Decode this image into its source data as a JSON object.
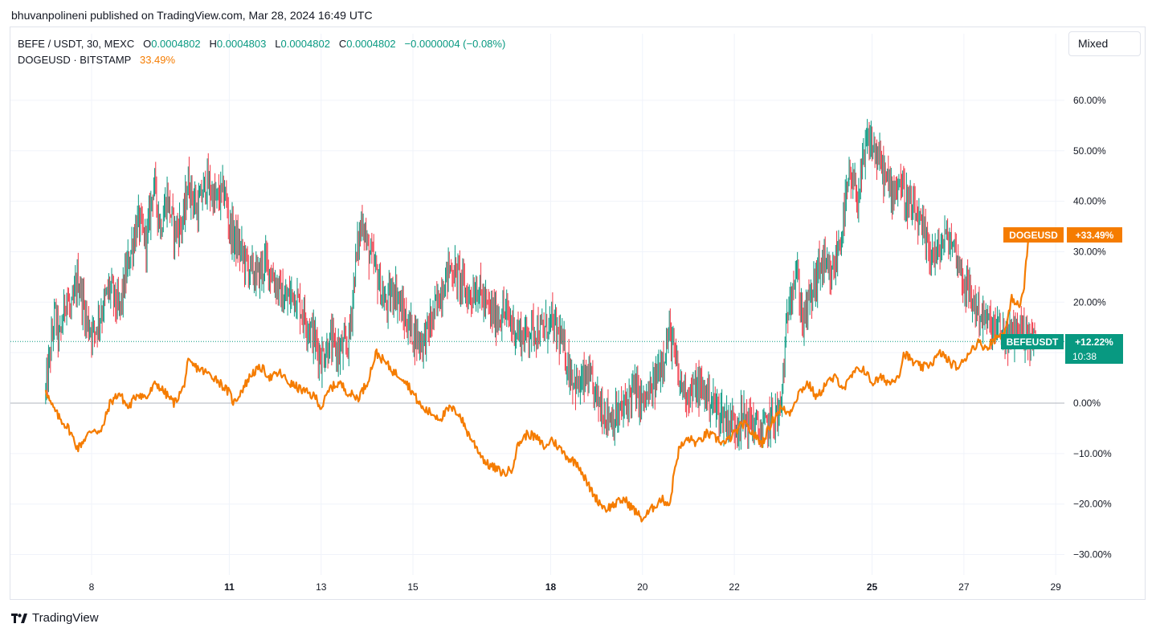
{
  "header": {
    "published": "bhuvanpolineni published on TradingView.com, Mar 28, 2024 16:49 UTC"
  },
  "legend": {
    "symbol_line": "BEFE / USDT, 30, MEXC",
    "o_label": "O",
    "o_value": "0.0004802",
    "h_label": "H",
    "h_value": "0.0004803",
    "l_label": "L",
    "l_value": "0.0004802",
    "c_label": "C",
    "c_value": "0.0004802",
    "change": "−0.0000004 (−0.08%)",
    "compare_symbol": "DOGEUSD · BITSTAMP",
    "compare_value": "33.49%"
  },
  "controls": {
    "scale_mode": "Mixed"
  },
  "badges": {
    "doge_label": "DOGEUSD",
    "doge_value": "+33.49%",
    "befe_label": "BEFEUSDT",
    "befe_value": "+12.22%",
    "befe_countdown": "10:38"
  },
  "footer": {
    "brand": "TradingView",
    "logo_icon": "tradingview-logo-icon"
  },
  "colors": {
    "up": "#089981",
    "down": "#f23645",
    "compare": "#f57c00",
    "grid": "#f0f3fa",
    "text": "#131722"
  },
  "chart_data": {
    "type": "line",
    "x_axis": {
      "ticks": [
        "8",
        "11",
        "13",
        "15",
        "18",
        "20",
        "22",
        "25",
        "27",
        "29"
      ],
      "bold_ticks": [
        "11",
        "18",
        "25"
      ],
      "range_days": [
        7.0,
        29.0
      ]
    },
    "y_axis": {
      "unit": "%",
      "ticks": [
        "60.00%",
        "50.00%",
        "40.00%",
        "30.00%",
        "20.00%",
        "10.00%",
        "0.00%",
        "−10.00%",
        "−20.00%",
        "−30.00%"
      ],
      "range": [
        -33,
        70
      ]
    },
    "grid": true,
    "baseline_value": 0,
    "last_price_line": 12.22,
    "series": [
      {
        "name": "BEFE / USDT, 30, MEXC",
        "style": "candles",
        "anchors": [
          [
            7.0,
            2
          ],
          [
            7.1,
            10
          ],
          [
            7.2,
            18
          ],
          [
            7.3,
            12
          ],
          [
            7.45,
            22
          ],
          [
            7.55,
            17
          ],
          [
            7.7,
            25
          ],
          [
            7.9,
            16
          ],
          [
            8.05,
            14
          ],
          [
            8.2,
            18
          ],
          [
            8.4,
            23
          ],
          [
            8.6,
            18
          ],
          [
            8.8,
            28
          ],
          [
            9.0,
            36
          ],
          [
            9.2,
            32
          ],
          [
            9.35,
            44
          ],
          [
            9.5,
            35
          ],
          [
            9.65,
            41
          ],
          [
            9.8,
            34
          ],
          [
            10.0,
            36
          ],
          [
            10.1,
            44
          ],
          [
            10.3,
            38
          ],
          [
            10.5,
            44
          ],
          [
            10.7,
            40
          ],
          [
            10.9,
            42
          ],
          [
            11.0,
            35
          ],
          [
            11.2,
            31
          ],
          [
            11.4,
            27
          ],
          [
            11.6,
            25
          ],
          [
            11.8,
            28
          ],
          [
            12.0,
            24
          ],
          [
            12.2,
            20
          ],
          [
            12.4,
            22
          ],
          [
            12.6,
            18
          ],
          [
            12.8,
            14
          ],
          [
            13.0,
            9
          ],
          [
            13.2,
            12
          ],
          [
            13.4,
            10
          ],
          [
            13.6,
            12
          ],
          [
            13.75,
            28
          ],
          [
            13.9,
            37
          ],
          [
            14.0,
            31
          ],
          [
            14.2,
            26
          ],
          [
            14.4,
            19
          ],
          [
            14.6,
            23
          ],
          [
            14.8,
            17
          ],
          [
            15.0,
            14
          ],
          [
            15.2,
            12
          ],
          [
            15.4,
            16
          ],
          [
            15.6,
            22
          ],
          [
            15.8,
            27
          ],
          [
            16.0,
            25
          ],
          [
            16.2,
            21
          ],
          [
            16.4,
            23
          ],
          [
            16.6,
            19
          ],
          [
            16.8,
            17
          ],
          [
            17.0,
            18
          ],
          [
            17.2,
            15
          ],
          [
            17.4,
            13
          ],
          [
            17.6,
            15
          ],
          [
            17.8,
            14
          ],
          [
            18.0,
            16
          ],
          [
            18.2,
            13
          ],
          [
            18.4,
            7
          ],
          [
            18.6,
            3
          ],
          [
            18.8,
            5
          ],
          [
            19.0,
            1
          ],
          [
            19.2,
            -2
          ],
          [
            19.4,
            -3
          ],
          [
            19.6,
            -1
          ],
          [
            19.8,
            3
          ],
          [
            20.0,
            0
          ],
          [
            20.2,
            2
          ],
          [
            20.4,
            8
          ],
          [
            20.6,
            14
          ],
          [
            20.7,
            9
          ],
          [
            20.8,
            4
          ],
          [
            21.0,
            2
          ],
          [
            21.2,
            3
          ],
          [
            21.4,
            2
          ],
          [
            21.6,
            -1
          ],
          [
            21.8,
            -3
          ],
          [
            22.0,
            -4
          ],
          [
            22.2,
            -3
          ],
          [
            22.4,
            -4
          ],
          [
            22.6,
            -6
          ],
          [
            22.8,
            -3
          ],
          [
            23.0,
            -2
          ],
          [
            23.1,
            10
          ],
          [
            23.2,
            22
          ],
          [
            23.35,
            26
          ],
          [
            23.5,
            16
          ],
          [
            23.7,
            22
          ],
          [
            23.9,
            28
          ],
          [
            24.1,
            24
          ],
          [
            24.3,
            32
          ],
          [
            24.5,
            44
          ],
          [
            24.7,
            41
          ],
          [
            24.9,
            52
          ],
          [
            25.0,
            51
          ],
          [
            25.2,
            47
          ],
          [
            25.4,
            42
          ],
          [
            25.6,
            44
          ],
          [
            25.8,
            39
          ],
          [
            26.0,
            36
          ],
          [
            26.2,
            31
          ],
          [
            26.4,
            29
          ],
          [
            26.6,
            33
          ],
          [
            26.8,
            31
          ],
          [
            27.0,
            24
          ],
          [
            27.2,
            20
          ],
          [
            27.4,
            17
          ],
          [
            27.6,
            15
          ],
          [
            27.8,
            14
          ],
          [
            28.0,
            13
          ],
          [
            28.2,
            15
          ],
          [
            28.4,
            13
          ],
          [
            28.58,
            12.22
          ]
        ]
      },
      {
        "name": "DOGEUSD · BITSTAMP",
        "style": "line",
        "anchors": [
          [
            7.0,
            3
          ],
          [
            7.1,
            0
          ],
          [
            7.3,
            -3
          ],
          [
            7.5,
            -5
          ],
          [
            7.7,
            -9
          ],
          [
            7.85,
            -7
          ],
          [
            8.05,
            -5
          ],
          [
            8.2,
            -6
          ],
          [
            8.4,
            0
          ],
          [
            8.6,
            2
          ],
          [
            8.8,
            -1
          ],
          [
            9.0,
            2
          ],
          [
            9.2,
            1
          ],
          [
            9.4,
            4
          ],
          [
            9.6,
            2
          ],
          [
            9.8,
            0
          ],
          [
            10.0,
            3
          ],
          [
            10.1,
            8
          ],
          [
            10.3,
            7
          ],
          [
            10.5,
            6
          ],
          [
            10.7,
            5
          ],
          [
            10.9,
            3
          ],
          [
            11.0,
            2
          ],
          [
            11.1,
            0
          ],
          [
            11.3,
            3
          ],
          [
            11.5,
            6
          ],
          [
            11.7,
            7
          ],
          [
            11.9,
            5
          ],
          [
            12.1,
            6
          ],
          [
            12.3,
            4
          ],
          [
            12.5,
            3
          ],
          [
            12.7,
            2
          ],
          [
            12.9,
            1
          ],
          [
            13.0,
            -1
          ],
          [
            13.2,
            3
          ],
          [
            13.4,
            4
          ],
          [
            13.6,
            2
          ],
          [
            13.8,
            1
          ],
          [
            14.0,
            4
          ],
          [
            14.2,
            10
          ],
          [
            14.4,
            8
          ],
          [
            14.6,
            6
          ],
          [
            14.8,
            5
          ],
          [
            15.0,
            2
          ],
          [
            15.2,
            -1
          ],
          [
            15.4,
            -2
          ],
          [
            15.6,
            -3
          ],
          [
            15.8,
            -1
          ],
          [
            16.0,
            -2
          ],
          [
            16.2,
            -6
          ],
          [
            16.4,
            -9
          ],
          [
            16.6,
            -12
          ],
          [
            16.8,
            -13
          ],
          [
            17.0,
            -14
          ],
          [
            17.15,
            -13
          ],
          [
            17.3,
            -8
          ],
          [
            17.5,
            -6
          ],
          [
            17.7,
            -7
          ],
          [
            17.9,
            -9
          ],
          [
            18.0,
            -7
          ],
          [
            18.2,
            -9
          ],
          [
            18.4,
            -11
          ],
          [
            18.6,
            -12
          ],
          [
            18.8,
            -16
          ],
          [
            19.0,
            -19
          ],
          [
            19.2,
            -21
          ],
          [
            19.4,
            -20
          ],
          [
            19.6,
            -19
          ],
          [
            19.8,
            -21
          ],
          [
            20.0,
            -23
          ],
          [
            20.2,
            -21
          ],
          [
            20.4,
            -19
          ],
          [
            20.6,
            -20
          ],
          [
            20.7,
            -13
          ],
          [
            20.8,
            -9
          ],
          [
            21.0,
            -7
          ],
          [
            21.2,
            -8
          ],
          [
            21.4,
            -6
          ],
          [
            21.6,
            -7
          ],
          [
            21.8,
            -8
          ],
          [
            22.0,
            -6
          ],
          [
            22.2,
            -4
          ],
          [
            22.4,
            -6
          ],
          [
            22.6,
            -8
          ],
          [
            22.8,
            -4
          ],
          [
            23.0,
            -1
          ],
          [
            23.2,
            -2
          ],
          [
            23.4,
            2
          ],
          [
            23.6,
            4
          ],
          [
            23.8,
            1
          ],
          [
            24.0,
            4
          ],
          [
            24.2,
            5
          ],
          [
            24.4,
            3
          ],
          [
            24.6,
            6
          ],
          [
            24.8,
            7
          ],
          [
            25.0,
            4
          ],
          [
            25.2,
            5
          ],
          [
            25.4,
            4
          ],
          [
            25.6,
            6
          ],
          [
            25.7,
            10
          ],
          [
            25.9,
            8
          ],
          [
            26.1,
            7
          ],
          [
            26.3,
            8
          ],
          [
            26.5,
            10
          ],
          [
            26.7,
            8
          ],
          [
            26.9,
            7
          ],
          [
            27.1,
            10
          ],
          [
            27.3,
            12
          ],
          [
            27.5,
            11
          ],
          [
            27.7,
            13
          ],
          [
            27.9,
            14
          ],
          [
            28.05,
            21
          ],
          [
            28.2,
            19
          ],
          [
            28.3,
            22
          ],
          [
            28.4,
            32
          ],
          [
            28.5,
            33
          ],
          [
            28.58,
            33.49
          ]
        ]
      }
    ]
  }
}
